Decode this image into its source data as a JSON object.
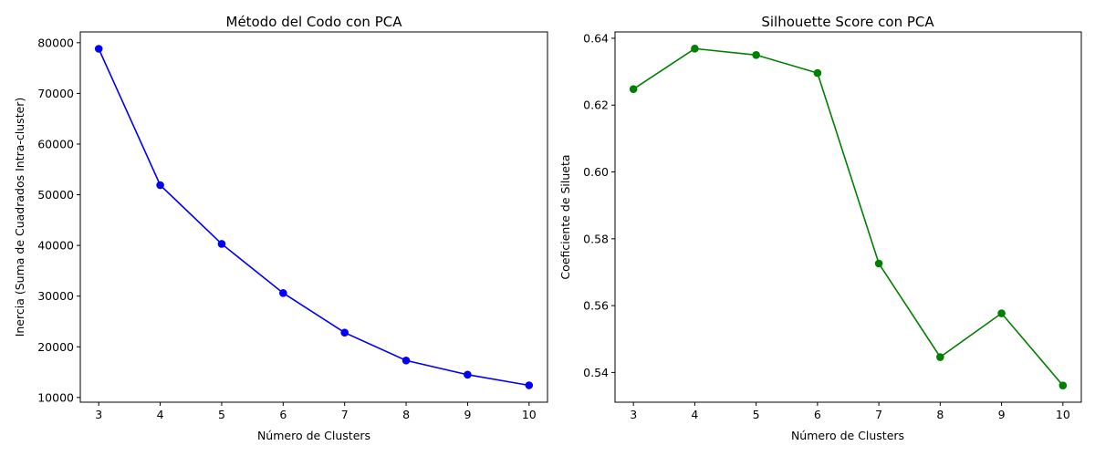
{
  "chart_data": [
    {
      "type": "line",
      "title": "Método del Codo con PCA",
      "xlabel": "Número de Clusters",
      "ylabel": "Inercia (Suma de Cuadrados Intra-cluster)",
      "x": [
        3,
        4,
        5,
        6,
        7,
        8,
        9,
        10
      ],
      "series": [
        {
          "values": [
            78800,
            51900,
            40300,
            30600,
            22800,
            17300,
            14500,
            12400
          ],
          "color": "#0000ff",
          "marker": "circle"
        }
      ],
      "xlim": [
        2.7,
        10.3
      ],
      "ylim": [
        9070,
        82130
      ],
      "xticks": [
        3,
        4,
        5,
        6,
        7,
        8,
        9,
        10
      ],
      "yticks": [
        10000,
        20000,
        30000,
        40000,
        50000,
        60000,
        70000,
        80000
      ],
      "grid": false
    },
    {
      "type": "line",
      "title": "Silhouette Score con PCA",
      "xlabel": "Número de Clusters",
      "ylabel": "Coeficiente de Silueta",
      "x": [
        3,
        4,
        5,
        6,
        7,
        8,
        9,
        10
      ],
      "series": [
        {
          "values": [
            0.6248,
            0.6369,
            0.635,
            0.6296,
            0.5726,
            0.5446,
            0.5577,
            0.5361
          ],
          "color": "#008000",
          "marker": "circle"
        }
      ],
      "xlim": [
        2.7,
        10.3
      ],
      "ylim": [
        0.5311,
        0.6419
      ],
      "xticks": [
        3,
        4,
        5,
        6,
        7,
        8,
        9,
        10
      ],
      "yticks": [
        0.54,
        0.56,
        0.58,
        0.6,
        0.62,
        0.64
      ],
      "ytick_labels": [
        "0.54",
        "0.56",
        "0.58",
        "0.60",
        "0.62",
        "0.64"
      ],
      "grid": false
    }
  ]
}
